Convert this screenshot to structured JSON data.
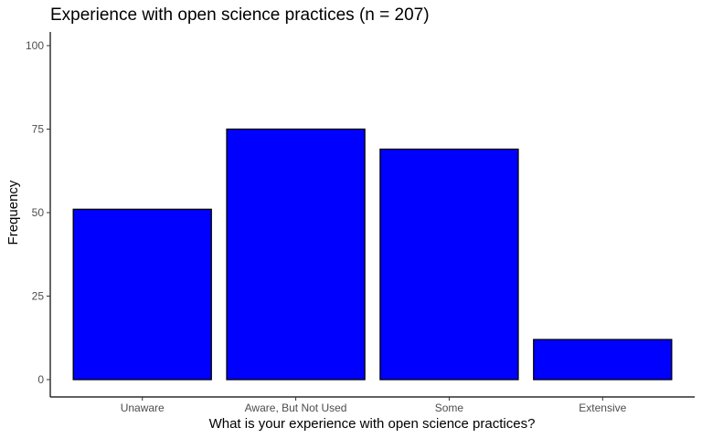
{
  "chart_data": {
    "type": "bar",
    "title": "Experience with open science practices (n = 207)",
    "xlabel": "What is your experience with open science practices?",
    "ylabel": "Frequency",
    "categories": [
      "Unaware",
      "Aware, But Not Used",
      "Some",
      "Extensive"
    ],
    "values": [
      51,
      75,
      69,
      12
    ],
    "ylim": [
      0,
      100
    ],
    "yticks": [
      0,
      25,
      50,
      75,
      100
    ],
    "grid": false,
    "legend": "none",
    "bar_color": "#0000ff",
    "bar_outline": "#000000"
  }
}
